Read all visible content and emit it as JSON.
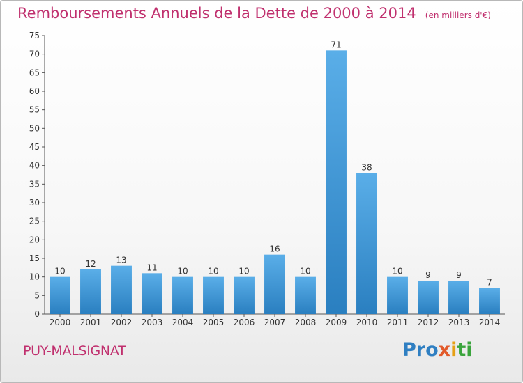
{
  "header": {
    "title": "Remboursements Annuels de la Dette de 2000 à 2014",
    "subtitle": "(en milliers d'€)"
  },
  "footer": {
    "commune": "PUY-MALSIGNAT",
    "logo_parts": [
      "Pro",
      "x",
      "i",
      "ti"
    ]
  },
  "colors": {
    "title": "#c0306e",
    "bar_top": "#5aaee8",
    "bar_bottom": "#2a7fc0"
  },
  "chart_data": {
    "type": "bar",
    "categories": [
      "2000",
      "2001",
      "2002",
      "2003",
      "2004",
      "2005",
      "2006",
      "2007",
      "2008",
      "2009",
      "2010",
      "2011",
      "2012",
      "2013",
      "2014"
    ],
    "values": [
      10,
      12,
      13,
      11,
      10,
      10,
      10,
      16,
      10,
      71,
      38,
      10,
      9,
      9,
      7
    ],
    "title": "Remboursements Annuels de la Dette de 2000 à 2014",
    "subtitle": "(en milliers d'€)",
    "xlabel": "",
    "ylabel": "",
    "ylim": [
      0,
      75
    ],
    "yticks": [
      0,
      5,
      10,
      15,
      20,
      25,
      30,
      35,
      40,
      45,
      50,
      55,
      60,
      65,
      70,
      75
    ],
    "grid": false,
    "legend": "none"
  }
}
